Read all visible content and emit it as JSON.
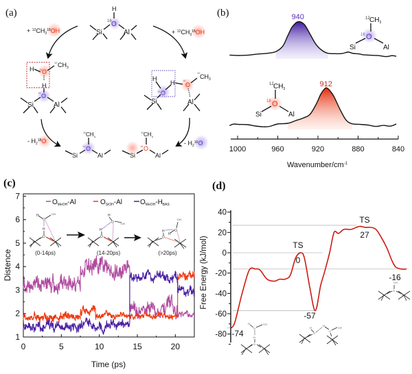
{
  "figure": {
    "panels": {
      "a": {
        "label": "(a)"
      },
      "b": {
        "label": "(b)"
      },
      "c": {
        "label": "(c)"
      },
      "d": {
        "label": "(d)"
      }
    }
  },
  "scheme_a": {
    "top": {
      "h": "H",
      "o": "O",
      "o_iso": "16",
      "si": "Si",
      "al": "Al"
    },
    "left_reagent": {
      "prefix": "+ ",
      "c_iso": "12",
      "ch": "CH",
      "sub3": "3",
      "o_iso": "18",
      "oh": "OH"
    },
    "right_reagent": {
      "prefix": "+ ",
      "c_iso": "12",
      "ch": "CH",
      "sub3": "3",
      "o_iso": "18",
      "oh": "OH"
    },
    "left_mid": {
      "h1": "H",
      "o_meoh": "O",
      "o_meoh_iso": "18",
      "c_iso": "12",
      "ch3": "CH",
      "sub3": "3",
      "h2": "H",
      "o_bas": "O",
      "o_bas_iso": "16",
      "si": "Si",
      "al": "Al"
    },
    "right_mid": {
      "h1": "H",
      "o_bas": "O",
      "o_bas_iso": "16",
      "h2": "H",
      "o_meoh": "O",
      "o_meoh_iso": "18",
      "c_iso": "12",
      "ch3": "CH",
      "sub3": "3",
      "si": "Si",
      "al": "Al"
    },
    "left_loss": {
      "prefix": "- H",
      "sub2": "2",
      "o_iso": "18",
      "o": "O"
    },
    "right_loss": {
      "prefix": "- H",
      "sub2": "2",
      "o_iso": "16",
      "o": "O"
    },
    "bottom_left": {
      "c_iso": "12",
      "ch3": "CH",
      "sub3": "3",
      "o": "O",
      "o_iso": "16",
      "si": "Si",
      "al": "Al"
    },
    "bottom_right": {
      "c_iso": "12",
      "ch3": "CH",
      "sub3": "3",
      "o": "O",
      "o_iso": "18",
      "si": "Si",
      "al": "Al"
    }
  },
  "colors": {
    "o16_purple": "#5b2fb8",
    "o18_red": "#e8341c",
    "series_omeoh_al": "#b04a9e",
    "series_osioh_al": "#ee3a10",
    "series_omeoh_hbas": "#4a1fa3",
    "energy_curve": "#cc1a10",
    "guide_line": "#bbbbbb"
  },
  "chart_data": [
    {
      "id": "b",
      "type": "line",
      "title": "",
      "xlabel": "Wavenumber/cm",
      "xlabel_sup": "-1",
      "ylabel": "",
      "xlim": [
        1010,
        840
      ],
      "x_ticks": [
        "1000",
        "960",
        "920",
        "880",
        "840"
      ],
      "x_tick_values": [
        1000,
        960,
        920,
        880,
        840
      ],
      "series": [
        {
          "name": "16O methoxy (Si-16O(12CH3)-Al)",
          "peak_label": "940",
          "peak_position": 940,
          "peak_color": "#5b2fb8",
          "x": [
            1008,
            1000,
            990,
            980,
            970,
            962,
            955,
            950,
            946,
            942,
            940,
            937,
            933,
            928,
            922,
            916,
            910,
            904,
            896,
            890,
            885,
            880,
            874,
            868,
            860,
            852,
            846,
            842
          ],
          "y": [
            0.02,
            0.03,
            0.04,
            0.05,
            0.07,
            0.12,
            0.3,
            0.6,
            0.85,
            0.98,
            1.0,
            0.99,
            0.9,
            0.66,
            0.36,
            0.16,
            0.08,
            0.06,
            0.07,
            0.11,
            0.09,
            0.06,
            0.05,
            0.02,
            0.03,
            0.0,
            0.01,
            0.0
          ]
        },
        {
          "name": "18O methoxy (Si-18O(12CH3)-Al)",
          "peak_label": "912",
          "peak_position": 912,
          "peak_color": "#e8341c",
          "x": [
            1008,
            1004,
            998,
            990,
            982,
            974,
            968,
            960,
            950,
            942,
            935,
            928,
            922,
            917,
            913,
            911,
            908,
            904,
            898,
            892,
            886,
            878,
            870,
            862,
            855,
            848,
            842
          ],
          "y": [
            0.03,
            0.06,
            0.07,
            0.05,
            0.03,
            0.01,
            0.02,
            0.06,
            0.1,
            0.17,
            0.22,
            0.31,
            0.58,
            0.86,
            0.99,
            1.0,
            0.95,
            0.78,
            0.45,
            0.18,
            0.08,
            0.06,
            0.04,
            0.01,
            0.03,
            0.02,
            0.06
          ]
        }
      ],
      "insets": {
        "upper": {
          "c_iso": "12",
          "ch3": "CH",
          "sub3": "3",
          "o_iso": "16",
          "o": "O",
          "si": "Si",
          "al": "Al"
        },
        "lower": {
          "c_iso": "12",
          "ch3": "CH",
          "sub3": "3",
          "o_iso": "18",
          "o": "O",
          "si": "Si",
          "al": "Al"
        }
      }
    },
    {
      "id": "c",
      "type": "line",
      "title": "",
      "xlabel": "Time (ps)",
      "ylabel": "Distence",
      "xlim": [
        0,
        22.5
      ],
      "ylim": [
        0.8,
        7
      ],
      "x_ticks": [
        "0",
        "5",
        "10",
        "15",
        "20"
      ],
      "x_tick_values": [
        0,
        5,
        10,
        15,
        20
      ],
      "y_ticks": [
        "1",
        "2",
        "3",
        "4",
        "5",
        "6",
        "7"
      ],
      "y_tick_values": [
        1,
        2,
        3,
        4,
        5,
        6,
        7
      ],
      "legend": {
        "placement": "top",
        "entries": [
          {
            "main": "O",
            "sub": "MeOH",
            "tail": "-Al",
            "sub2": "",
            "color": "#b04a9e"
          },
          {
            "main": "O",
            "sub": "SiOH",
            "tail": "-Al",
            "sub2": "",
            "color": "#ee3a10"
          },
          {
            "main": "O",
            "sub": "MeOH",
            "tail": "-H",
            "sub2": "BAS",
            "color": "#4a1fa3"
          }
        ]
      },
      "series": [
        {
          "name": "OMeOH-Al",
          "color": "#b04a9e",
          "segments": [
            {
              "t_start": 0,
              "t_end": 7.5,
              "mean": 3.3,
              "noise": 0.35
            },
            {
              "t_start": 7.5,
              "t_end": 14.0,
              "mean": 3.9,
              "noise": 0.35
            },
            {
              "t_start": 14.0,
              "t_end": 20.3,
              "mean": 2.2,
              "noise": 0.3
            },
            {
              "t_start": 20.3,
              "t_end": 22.5,
              "mean": 1.9,
              "noise": 0.15
            }
          ]
        },
        {
          "name": "OSiOH-Al",
          "color": "#ee3a10",
          "segments": [
            {
              "t_start": 0,
              "t_end": 7.5,
              "mean": 1.85,
              "noise": 0.18
            },
            {
              "t_start": 7.5,
              "t_end": 9.5,
              "mean": 2.15,
              "noise": 0.2
            },
            {
              "t_start": 9.5,
              "t_end": 20.3,
              "mean": 1.9,
              "noise": 0.12
            },
            {
              "t_start": 20.3,
              "t_end": 22.5,
              "mean": 3.6,
              "noise": 0.2
            }
          ]
        },
        {
          "name": "OMeOH-HBAS",
          "color": "#4a1fa3",
          "segments": [
            {
              "t_start": 0,
              "t_end": 14.0,
              "mean": 1.45,
              "noise": 0.2
            },
            {
              "t_start": 14.0,
              "t_end": 20.3,
              "mean": 3.55,
              "noise": 0.2
            },
            {
              "t_start": 20.3,
              "t_end": 22.5,
              "mean": 2.95,
              "noise": 0.2
            }
          ]
        }
      ],
      "snapshots": [
        {
          "label": "(0-14ps)"
        },
        {
          "label": "(14-20ps)"
        },
        {
          "label": "(>20ps)"
        }
      ],
      "snapshot_atoms": {
        "h": "H",
        "o": "O",
        "ch3": "CH",
        "sub3": "3",
        "si": "Si",
        "al": "Al"
      }
    },
    {
      "id": "d",
      "type": "line",
      "title": "",
      "xlabel": "",
      "ylabel": "Free Energy (kJ/mol)",
      "ylim": [
        -90,
        42
      ],
      "y_ticks": [
        "40",
        "20",
        "0",
        "-20",
        "-40",
        "-60",
        "-80"
      ],
      "y_tick_values": [
        40,
        20,
        0,
        -20,
        -40,
        -60,
        -80
      ],
      "x_reaction_coordinate": [
        0,
        0.02,
        0.06,
        0.1,
        0.135,
        0.16,
        0.2,
        0.24,
        0.27,
        0.3,
        0.33,
        0.36,
        0.39,
        0.41,
        0.44,
        0.47,
        0.5,
        0.52,
        0.55,
        0.575,
        0.6,
        0.63,
        0.67,
        0.7,
        0.72,
        0.75,
        0.78,
        0.81,
        0.84,
        0.87,
        0.9,
        0.92,
        0.95,
        0.98
      ],
      "free_energy": [
        -74,
        -68,
        -40,
        -17,
        -16,
        -17,
        -26,
        -28,
        -26,
        -26,
        -22,
        -5,
        0,
        -6,
        -35,
        -57,
        -32,
        -20,
        0,
        20,
        19,
        23,
        23,
        25,
        26,
        25,
        25,
        23,
        15,
        5,
        -8,
        -14,
        -16,
        -16
      ],
      "guide_lines": [
        27,
        0,
        -16,
        -57,
        -74
      ],
      "annotations": [
        {
          "text": "TS",
          "value": 0,
          "kind": "ts"
        },
        {
          "text": "0",
          "value": 0,
          "kind": "value"
        },
        {
          "text": "TS",
          "value": 27,
          "kind": "ts"
        },
        {
          "text": "27",
          "value": 27,
          "kind": "value"
        },
        {
          "text": "-74",
          "value": -74,
          "kind": "value"
        },
        {
          "text": "-57",
          "value": -57,
          "kind": "value"
        },
        {
          "text": "-16",
          "value": -16,
          "kind": "value"
        }
      ],
      "structure_atoms": {
        "h": "H",
        "o": "O",
        "ch3": "CH",
        "sub3": "3",
        "si": "Si",
        "al": "Al"
      }
    }
  ]
}
